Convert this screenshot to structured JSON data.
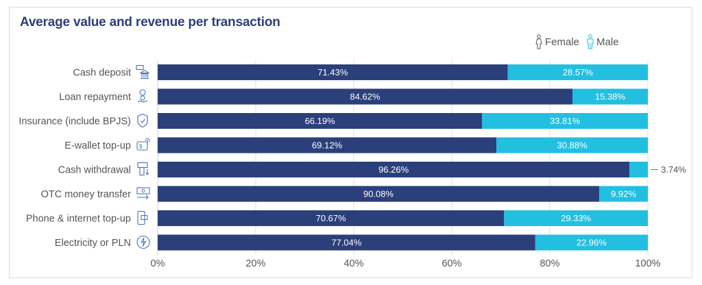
{
  "chart_data": {
    "type": "bar",
    "orientation": "horizontal",
    "stacked": true,
    "title": "Average value and revenue per transaction",
    "xlabel": "",
    "ylabel": "",
    "xlim": [
      0,
      100
    ],
    "grid": true,
    "legend_position": "top-right",
    "categories": [
      "Cash deposit",
      "Loan repayment",
      "Insurance (include BPJS)",
      "E-wallet top-up",
      "Cash withdrawal",
      "OTC money transfer",
      "Phone & internet top-up",
      "Electricity or PLN"
    ],
    "category_icons": [
      "cash-deposit-bank-icon",
      "loan-repayment-hand-coin-icon",
      "insurance-shield-icon",
      "e-wallet-icon",
      "cash-withdrawal-atm-icon",
      "money-transfer-banknote-icon",
      "phone-topup-icon",
      "electricity-bolt-icon"
    ],
    "series": [
      {
        "name": "Female",
        "color": "#2b3f7a",
        "icon": "female-icon",
        "values": [
          71.43,
          84.62,
          66.19,
          69.12,
          96.26,
          90.08,
          70.67,
          77.04
        ],
        "labels": [
          "71.43%",
          "84.62%",
          "66.19%",
          "69.12%",
          "96.26%",
          "90.08%",
          "70.67%",
          "77.04%"
        ]
      },
      {
        "name": "Male",
        "color": "#22bfe0",
        "icon": "male-icon",
        "values": [
          28.57,
          15.38,
          33.81,
          30.88,
          3.74,
          9.92,
          29.33,
          22.96
        ],
        "labels": [
          "28.57%",
          "15.38%",
          "33.81%",
          "30.88%",
          "3.74%",
          "9.92%",
          "29.33%",
          "22.96%"
        ]
      }
    ],
    "x_ticks": [
      0,
      20,
      40,
      60,
      80,
      100
    ],
    "x_tick_labels": [
      "0%",
      "20%",
      "40%",
      "60%",
      "80%",
      "100%"
    ]
  },
  "legend": {
    "female_label": "Female",
    "male_label": "Male"
  }
}
